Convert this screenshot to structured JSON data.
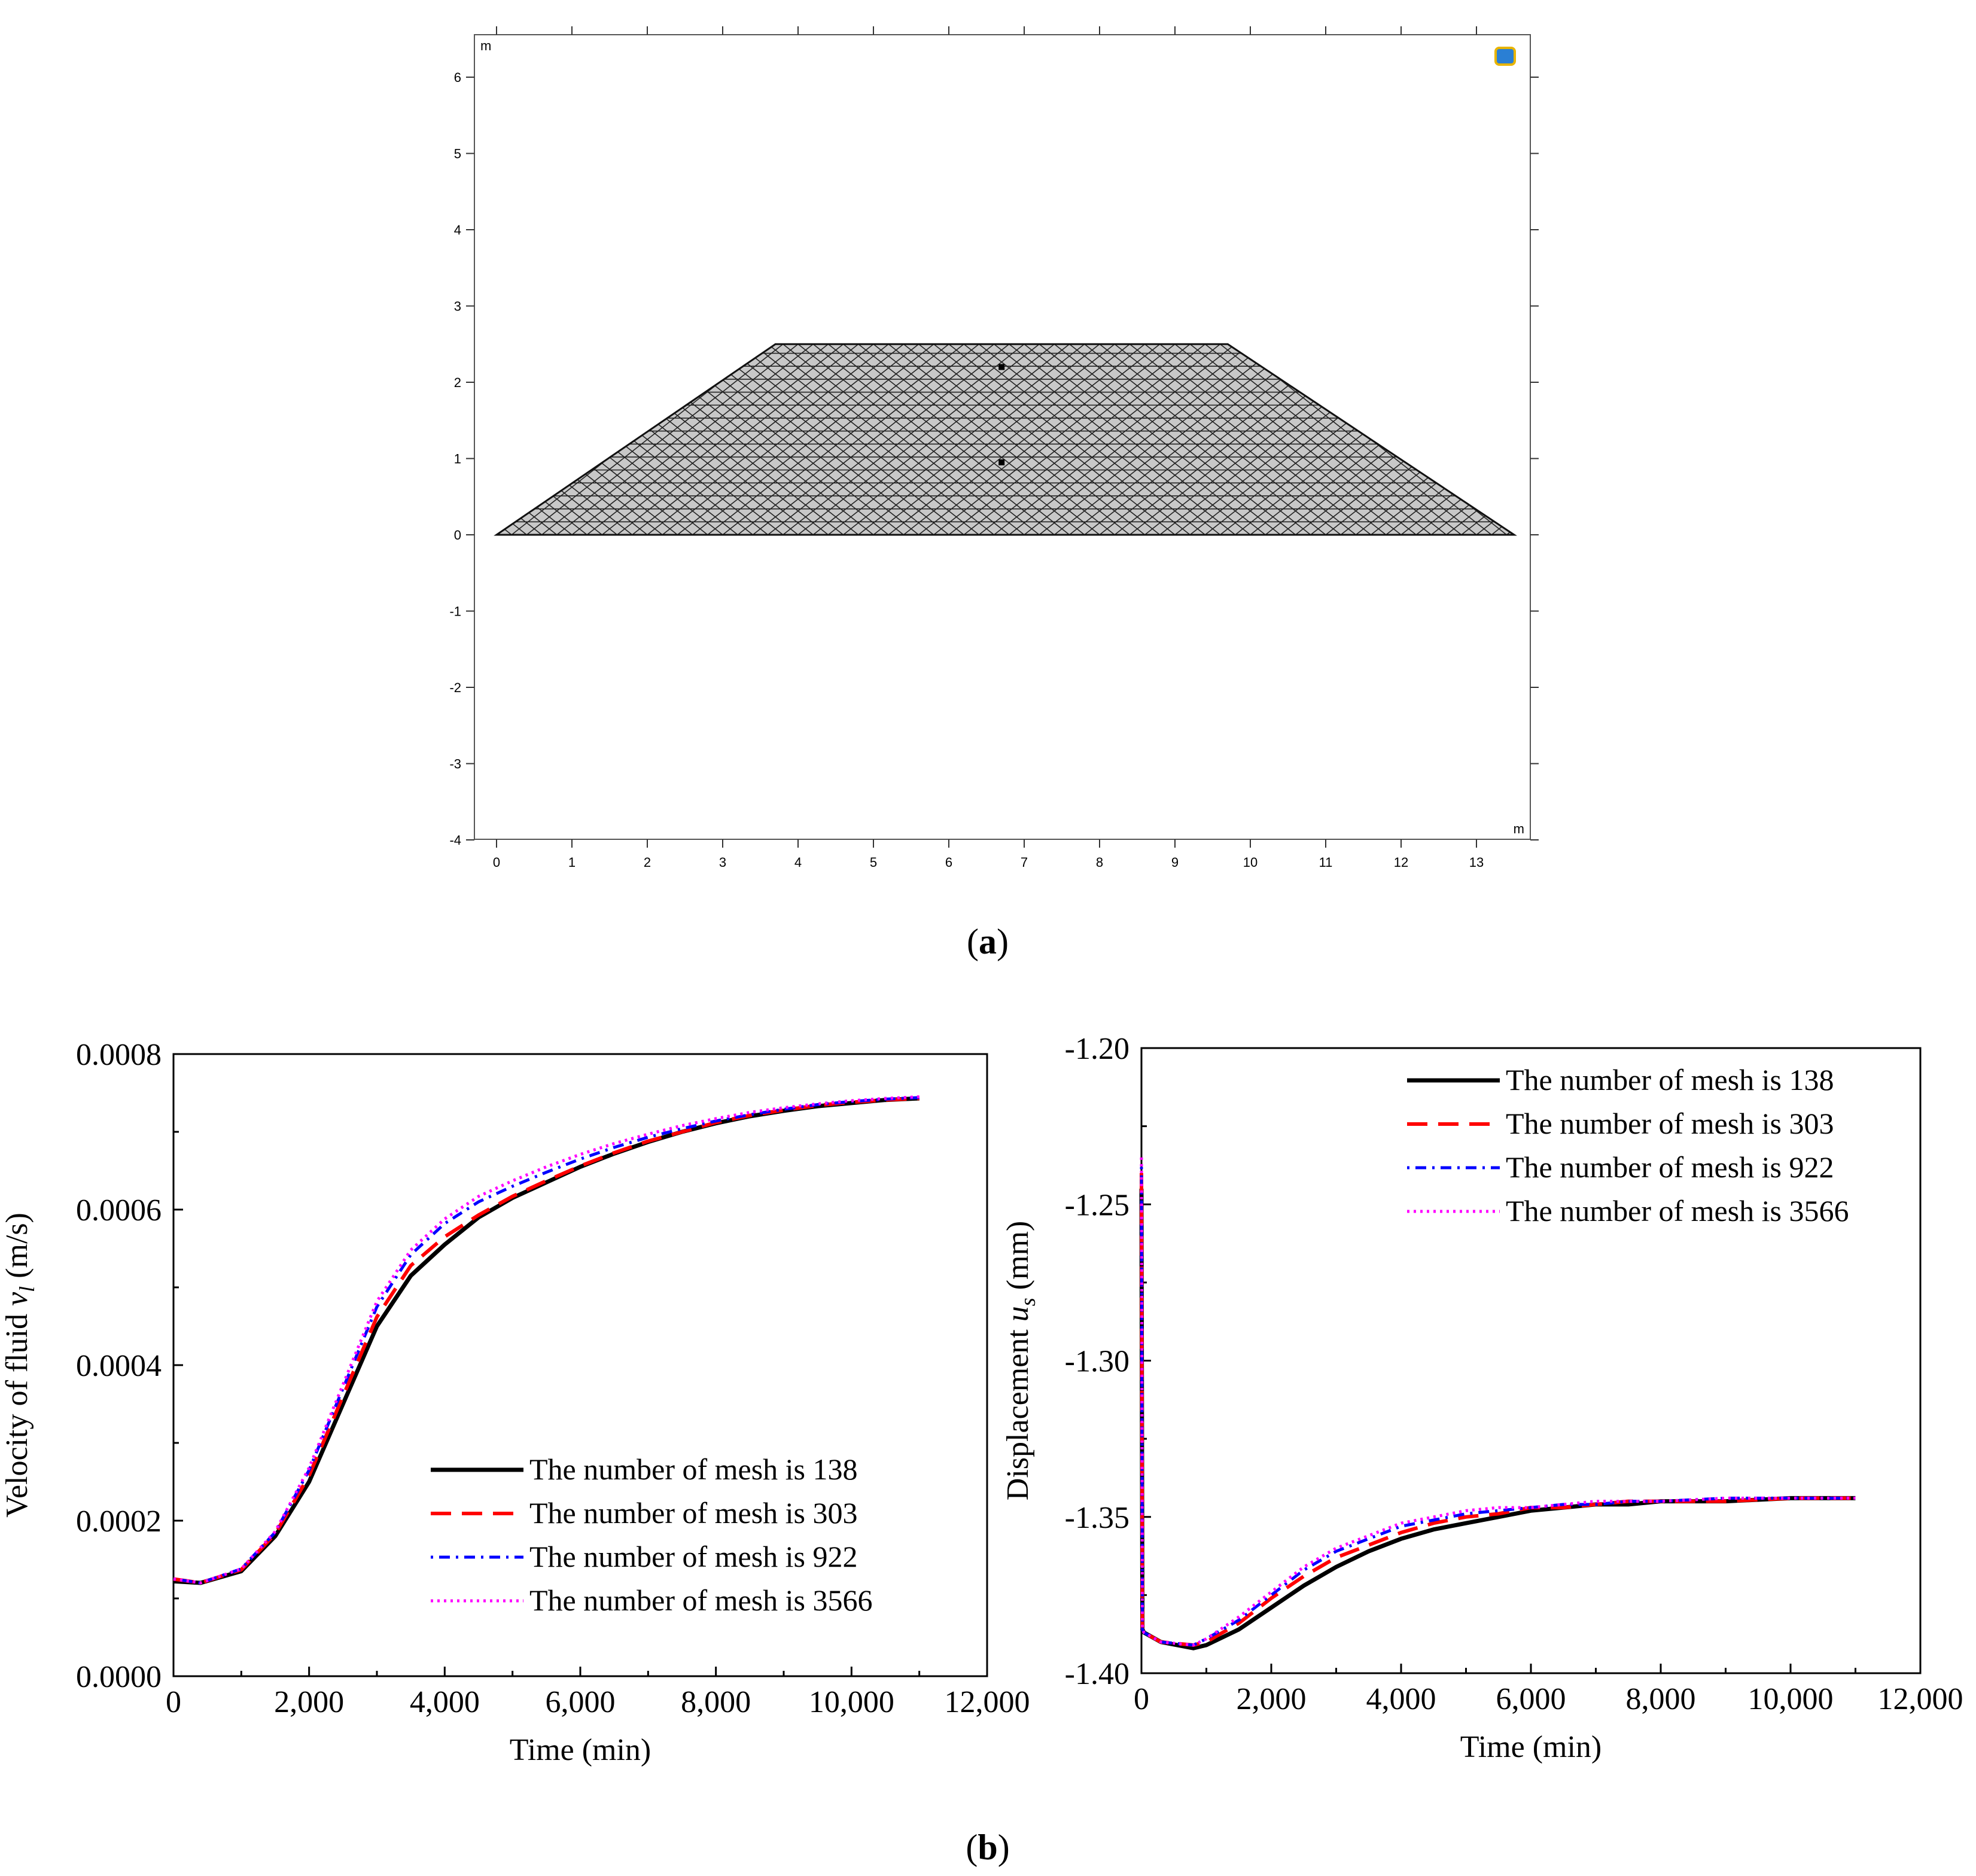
{
  "panel_a": {
    "label_open": "(",
    "label_letter": "a",
    "label_close": ")",
    "unit_y": "m",
    "unit_x": "m",
    "x_ticks": [
      "0",
      "1",
      "2",
      "3",
      "4",
      "5",
      "6",
      "7",
      "8",
      "9",
      "10",
      "11",
      "12",
      "13"
    ],
    "y_ticks": [
      "-4",
      "-3",
      "-2",
      "-1",
      "0",
      "1",
      "2",
      "3",
      "4",
      "5",
      "6"
    ],
    "embankment": {
      "bottom_left_m": 0,
      "bottom_right_m": 13.5,
      "top_left_m": 3.7,
      "top_right_m": 9.7,
      "base_m": 0,
      "crest_m": 2.5
    },
    "monitor_points_m": [
      [
        6.7,
        2.2
      ],
      [
        6.7,
        0.95
      ]
    ]
  },
  "panel_b": {
    "label_open": "(",
    "label_letter": "b",
    "label_close": ")"
  },
  "chart_data": [
    {
      "type": "line",
      "id": "velocity",
      "title": "",
      "xlabel": "Time (min)",
      "ylabel_prefix": "Velocity of fluid ",
      "ylabel_var": "v",
      "ylabel_sub": "l",
      "ylabel_suffix": " (m/s)",
      "xlim": [
        0,
        12000
      ],
      "ylim": [
        0,
        0.0008
      ],
      "x_tick_labels": [
        "0",
        "2,000",
        "4,000",
        "6,000",
        "8,000",
        "10,000",
        "12,000"
      ],
      "y_tick_labels": [
        "0.0000",
        "0.0002",
        "0.0004",
        "0.0006",
        "0.0008"
      ],
      "legend_position": "bottom-right",
      "series": [
        {
          "name": "The number of mesh is 138",
          "color": "#000000",
          "dash": "solid",
          "x": [
            0,
            400,
            1000,
            1500,
            2000,
            2500,
            3000,
            3500,
            4000,
            4500,
            5000,
            5500,
            6000,
            6500,
            7000,
            7500,
            8000,
            8500,
            9000,
            9500,
            10000,
            10500,
            11000
          ],
          "y": [
            0.000122,
            0.00012,
            0.000135,
            0.00018,
            0.00025,
            0.00035,
            0.00045,
            0.000515,
            0.000555,
            0.00059,
            0.000615,
            0.000635,
            0.000655,
            0.000672,
            0.000687,
            0.0007,
            0.000711,
            0.00072,
            0.000727,
            0.000733,
            0.000737,
            0.000741,
            0.000743
          ]
        },
        {
          "name": "The number of mesh is 303",
          "color": "#ff0000",
          "dash": "dash",
          "x": [
            0,
            400,
            1000,
            1500,
            2000,
            2500,
            3000,
            3500,
            4000,
            4500,
            5000,
            5500,
            6000,
            6500,
            7000,
            7500,
            8000,
            8500,
            9000,
            9500,
            10000,
            10500,
            11000
          ],
          "y": [
            0.000125,
            0.00012,
            0.000137,
            0.000183,
            0.000258,
            0.00036,
            0.000462,
            0.000528,
            0.000565,
            0.000593,
            0.000617,
            0.000637,
            0.000656,
            0.000673,
            0.000688,
            0.0007,
            0.000712,
            0.000721,
            0.000728,
            0.000734,
            0.000738,
            0.000741,
            0.000743
          ]
        },
        {
          "name": "The number of mesh is 922",
          "color": "#0000ff",
          "dash": "dashdot",
          "x": [
            0,
            400,
            1000,
            1500,
            2000,
            2500,
            3000,
            3500,
            4000,
            4500,
            5000,
            5500,
            6000,
            6500,
            7000,
            7500,
            8000,
            8500,
            9000,
            9500,
            10000,
            10500,
            11000
          ],
          "y": [
            0.000125,
            0.00012,
            0.000138,
            0.000185,
            0.000265,
            0.00037,
            0.000475,
            0.000542,
            0.000582,
            0.00061,
            0.00063,
            0.000648,
            0.000665,
            0.00068,
            0.000693,
            0.000704,
            0.000714,
            0.000722,
            0.000729,
            0.000735,
            0.000739,
            0.000742,
            0.000744
          ]
        },
        {
          "name": "The number of mesh is 3566",
          "color": "#ff00ff",
          "dash": "dot",
          "x": [
            0,
            400,
            1000,
            1500,
            2000,
            2500,
            3000,
            3500,
            4000,
            4500,
            5000,
            5500,
            6000,
            6500,
            7000,
            7500,
            8000,
            8500,
            9000,
            9500,
            10000,
            10500,
            11000
          ],
          "y": [
            0.000125,
            0.00012,
            0.000138,
            0.000186,
            0.000268,
            0.000375,
            0.000482,
            0.000548,
            0.000588,
            0.000617,
            0.000637,
            0.000655,
            0.000671,
            0.000685,
            0.000697,
            0.000708,
            0.000717,
            0.000725,
            0.000731,
            0.000736,
            0.00074,
            0.000743,
            0.000745
          ]
        }
      ]
    },
    {
      "type": "line",
      "id": "displacement",
      "title": "",
      "xlabel": "Time (min)",
      "ylabel_prefix": "Displacement ",
      "ylabel_var": "u",
      "ylabel_sub": "s",
      "ylabel_suffix": " (mm)",
      "xlim": [
        0,
        12000
      ],
      "ylim": [
        -1.4,
        -1.2
      ],
      "x_tick_labels": [
        "0",
        "2,000",
        "4,000",
        "6,000",
        "8,000",
        "10,000",
        "12,000"
      ],
      "y_tick_labels": [
        "-1.40",
        "-1.35",
        "-1.30",
        "-1.25",
        "-1.20"
      ],
      "legend_position": "top-right",
      "series": [
        {
          "name": "The number of mesh is 138",
          "color": "#000000",
          "dash": "solid",
          "x": [
            0,
            15,
            40,
            300,
            800,
            1000,
            1500,
            2000,
            2500,
            3000,
            3500,
            4000,
            4500,
            5000,
            5500,
            6000,
            6500,
            7000,
            7500,
            8000,
            9000,
            10000,
            11000
          ],
          "y": [
            -1.245,
            -1.386,
            -1.387,
            -1.39,
            -1.392,
            -1.391,
            -1.386,
            -1.379,
            -1.372,
            -1.366,
            -1.361,
            -1.357,
            -1.354,
            -1.352,
            -1.35,
            -1.348,
            -1.347,
            -1.346,
            -1.346,
            -1.345,
            -1.345,
            -1.344,
            -1.344
          ]
        },
        {
          "name": "The number of mesh is 303",
          "color": "#ff0000",
          "dash": "dash",
          "x": [
            0,
            15,
            40,
            300,
            800,
            1000,
            1500,
            2000,
            2500,
            3000,
            3500,
            4000,
            4500,
            5000,
            5500,
            6000,
            6500,
            7000,
            7500,
            8000,
            9000,
            10000,
            11000
          ],
          "y": [
            -1.24,
            -1.386,
            -1.387,
            -1.39,
            -1.391,
            -1.39,
            -1.384,
            -1.376,
            -1.369,
            -1.363,
            -1.359,
            -1.355,
            -1.352,
            -1.35,
            -1.349,
            -1.347,
            -1.347,
            -1.346,
            -1.345,
            -1.345,
            -1.345,
            -1.344,
            -1.344
          ]
        },
        {
          "name": "The number of mesh is 922",
          "color": "#0000ff",
          "dash": "dashdot",
          "x": [
            0,
            15,
            40,
            300,
            800,
            1000,
            1500,
            2000,
            2500,
            3000,
            3500,
            4000,
            4500,
            5000,
            5500,
            6000,
            6500,
            7000,
            7500,
            8000,
            9000,
            10000,
            11000
          ],
          "y": [
            -1.238,
            -1.386,
            -1.387,
            -1.39,
            -1.391,
            -1.389,
            -1.383,
            -1.375,
            -1.367,
            -1.361,
            -1.357,
            -1.353,
            -1.351,
            -1.349,
            -1.348,
            -1.347,
            -1.346,
            -1.346,
            -1.345,
            -1.345,
            -1.344,
            -1.344,
            -1.344
          ]
        },
        {
          "name": "The number of mesh is 3566",
          "color": "#ff00ff",
          "dash": "dot",
          "x": [
            0,
            15,
            40,
            300,
            800,
            1000,
            1500,
            2000,
            2500,
            3000,
            3500,
            4000,
            4500,
            5000,
            5500,
            6000,
            6500,
            7000,
            7500,
            8000,
            9000,
            10000,
            11000
          ],
          "y": [
            -1.235,
            -1.386,
            -1.387,
            -1.39,
            -1.391,
            -1.389,
            -1.382,
            -1.374,
            -1.366,
            -1.36,
            -1.356,
            -1.352,
            -1.35,
            -1.348,
            -1.347,
            -1.347,
            -1.346,
            -1.345,
            -1.345,
            -1.345,
            -1.344,
            -1.344,
            -1.344
          ]
        }
      ]
    }
  ]
}
